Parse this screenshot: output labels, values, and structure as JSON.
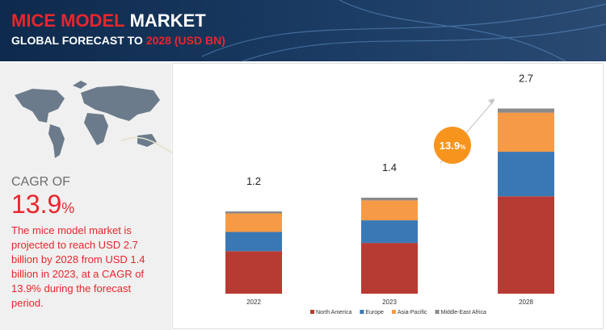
{
  "header": {
    "title_red": "MICE MODEL",
    "title_white": "MARKET",
    "subtitle_white": "GLOBAL FORECAST TO",
    "subtitle_red": "2028 (USD BN)"
  },
  "side": {
    "cagr_label": "CAGR OF",
    "cagr_value": "13.9",
    "cagr_unit": "%",
    "description_lines": [
      "The mice model market is",
      "projected to reach USD 2.7",
      "billion by 2028 from USD 1.4",
      "billion in 2023, at a CAGR of",
      "13.9% during the forecast",
      "period."
    ]
  },
  "chart_data": {
    "type": "stacked_bar",
    "categories": [
      "2022",
      "2023",
      "2028"
    ],
    "series": [
      {
        "name": "North America",
        "color": "#b83b33",
        "values": [
          0.62,
          0.74,
          1.42
        ]
      },
      {
        "name": "Europe",
        "color": "#3a78b5",
        "values": [
          0.28,
          0.33,
          0.65
        ]
      },
      {
        "name": "Asia-Pacific",
        "color": "#f79a45",
        "values": [
          0.27,
          0.29,
          0.57
        ]
      },
      {
        "name": "Middle-East Africa",
        "color": "#8a8a8a",
        "values": [
          0.03,
          0.04,
          0.06
        ]
      }
    ],
    "totals": [
      1.2,
      1.4,
      2.7
    ],
    "cagr_badge": {
      "value": "13.9",
      "unit": "%",
      "color": "#f7941d"
    }
  }
}
